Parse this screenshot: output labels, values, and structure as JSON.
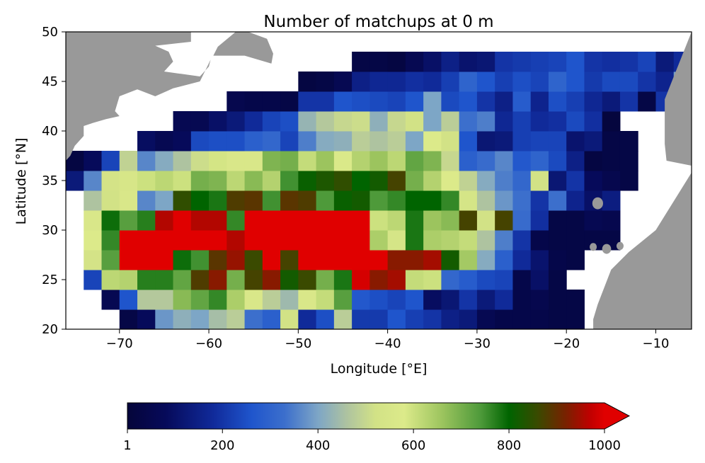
{
  "chart_data": {
    "type": "heatmap",
    "title": "Number of matchups at 0 m",
    "xlabel": "Longitude [°E]",
    "ylabel": "Latitude [°N]",
    "xlim": [
      -76,
      -6
    ],
    "ylim": [
      20,
      50
    ],
    "xticks": [
      -70,
      -60,
      -50,
      -40,
      -30,
      -20,
      -10
    ],
    "xtick_labels": [
      "−70",
      "−60",
      "−50",
      "−40",
      "−30",
      "−20",
      "−10"
    ],
    "yticks": [
      20,
      25,
      30,
      35,
      40,
      45,
      50
    ],
    "ytick_labels": [
      "20",
      "25",
      "30",
      "35",
      "40",
      "45",
      "50"
    ],
    "cell_size_deg": 2,
    "lon_start": -76,
    "lat_start": 20,
    "cells_note": "rows ordered from lat 20 to 50 (bottom to top), columns from lon -76 to -6; null = no data / land",
    "values": [
      [
        null,
        null,
        null,
        30,
        80,
        380,
        420,
        400,
        450,
        480,
        330,
        290,
        520,
        180,
        250,
        480,
        210,
        210,
        260,
        220,
        200,
        150,
        130,
        60,
        40,
        40,
        40,
        30,
        30,
        null,
        null,
        null,
        null,
        null,
        null
      ],
      [
        null,
        null,
        60,
        260,
        470,
        470,
        680,
        720,
        760,
        640,
        560,
        480,
        440,
        560,
        610,
        730,
        270,
        250,
        230,
        260,
        90,
        120,
        200,
        130,
        180,
        40,
        50,
        30,
        30,
        null,
        null,
        null,
        null,
        null,
        null
      ],
      [
        null,
        230,
        620,
        630,
        770,
        770,
        720,
        880,
        930,
        700,
        870,
        930,
        820,
        860,
        700,
        780,
        990,
        930,
        950,
        610,
        600,
        310,
        280,
        240,
        230,
        40,
        100,
        30,
        null,
        null,
        null,
        null,
        null,
        null,
        null
      ],
      [
        null,
        530,
        730,
        1000,
        1000,
        1000,
        790,
        750,
        890,
        940,
        860,
        1000,
        870,
        1000,
        1000,
        1000,
        1000,
        1000,
        930,
        930,
        950,
        820,
        650,
        410,
        290,
        180,
        110,
        40,
        30,
        null,
        null,
        null,
        null,
        null,
        null
      ],
      [
        null,
        580,
        760,
        1000,
        1000,
        1000,
        1000,
        1000,
        1000,
        960,
        1000,
        1000,
        1000,
        1000,
        1000,
        1000,
        1000,
        640,
        540,
        780,
        640,
        630,
        610,
        460,
        350,
        200,
        40,
        30,
        30,
        30,
        30,
        null,
        null,
        null,
        null
      ],
      [
        null,
        560,
        790,
        730,
        770,
        960,
        1000,
        960,
        960,
        760,
        1000,
        1000,
        1000,
        1000,
        1000,
        1000,
        1000,
        600,
        620,
        780,
        660,
        680,
        870,
        520,
        870,
        320,
        190,
        30,
        30,
        60,
        50,
        null,
        null,
        null,
        null
      ],
      [
        null,
        460,
        520,
        560,
        360,
        400,
        850,
        800,
        780,
        880,
        890,
        750,
        890,
        880,
        740,
        810,
        820,
        740,
        760,
        800,
        800,
        760,
        540,
        460,
        380,
        330,
        200,
        330,
        160,
        100,
        140,
        null,
        null,
        null,
        null
      ],
      [
        130,
        360,
        530,
        550,
        600,
        620,
        600,
        700,
        690,
        620,
        680,
        630,
        750,
        810,
        830,
        850,
        800,
        820,
        870,
        700,
        630,
        580,
        490,
        410,
        350,
        310,
        520,
        120,
        200,
        80,
        50,
        30,
        null,
        null,
        null
      ],
      [
        20,
        80,
        230,
        490,
        360,
        410,
        460,
        510,
        590,
        560,
        560,
        690,
        700,
        610,
        660,
        570,
        630,
        660,
        620,
        720,
        690,
        500,
        290,
        320,
        360,
        270,
        300,
        240,
        150,
        20,
        30,
        30,
        null,
        null,
        null
      ],
      [
        null,
        null,
        null,
        null,
        90,
        60,
        80,
        240,
        250,
        250,
        290,
        310,
        230,
        350,
        410,
        420,
        480,
        460,
        480,
        400,
        580,
        520,
        260,
        120,
        130,
        220,
        230,
        230,
        110,
        130,
        30,
        30,
        null,
        null,
        null
      ],
      [
        null,
        null,
        null,
        null,
        null,
        null,
        60,
        60,
        100,
        130,
        180,
        230,
        250,
        430,
        470,
        500,
        510,
        420,
        500,
        520,
        400,
        480,
        330,
        350,
        170,
        220,
        180,
        190,
        240,
        190,
        10,
        null,
        null,
        null,
        null
      ],
      [
        null,
        null,
        null,
        null,
        null,
        null,
        null,
        null,
        null,
        50,
        40,
        40,
        30,
        200,
        200,
        260,
        250,
        240,
        230,
        260,
        400,
        240,
        260,
        200,
        150,
        280,
        160,
        250,
        220,
        170,
        130,
        200,
        30,
        200,
        370
      ],
      [
        null,
        null,
        null,
        null,
        null,
        null,
        null,
        null,
        null,
        null,
        null,
        null,
        null,
        20,
        30,
        60,
        150,
        170,
        170,
        190,
        180,
        220,
        300,
        260,
        220,
        250,
        230,
        300,
        260,
        210,
        240,
        240,
        200,
        160,
        390
      ],
      [
        null,
        null,
        null,
        null,
        null,
        null,
        null,
        null,
        null,
        null,
        null,
        null,
        null,
        null,
        null,
        null,
        30,
        30,
        20,
        60,
        100,
        150,
        110,
        120,
        200,
        210,
        220,
        230,
        260,
        200,
        190,
        200,
        230,
        130,
        180
      ]
    ],
    "land_color": "#999999",
    "colormap": {
      "label_ticks": [
        1,
        200,
        400,
        600,
        800,
        1000
      ],
      "vmin": 1,
      "vmax": 1000,
      "extend": "max",
      "stops": [
        [
          0.0,
          "#05053a"
        ],
        [
          0.08,
          "#060a5a"
        ],
        [
          0.18,
          "#102a9a"
        ],
        [
          0.26,
          "#1f55cc"
        ],
        [
          0.33,
          "#3c6fcc"
        ],
        [
          0.4,
          "#7ea6c6"
        ],
        [
          0.46,
          "#aec3a0"
        ],
        [
          0.52,
          "#d2e286"
        ],
        [
          0.58,
          "#dcea8a"
        ],
        [
          0.66,
          "#9cc45e"
        ],
        [
          0.74,
          "#4e9a3a"
        ],
        [
          0.8,
          "#006400"
        ],
        [
          0.86,
          "#3a4a00"
        ],
        [
          0.92,
          "#7a2000"
        ],
        [
          0.97,
          "#c00000"
        ],
        [
          1.0,
          "#e00000"
        ]
      ],
      "over_color": "#e00000"
    }
  }
}
